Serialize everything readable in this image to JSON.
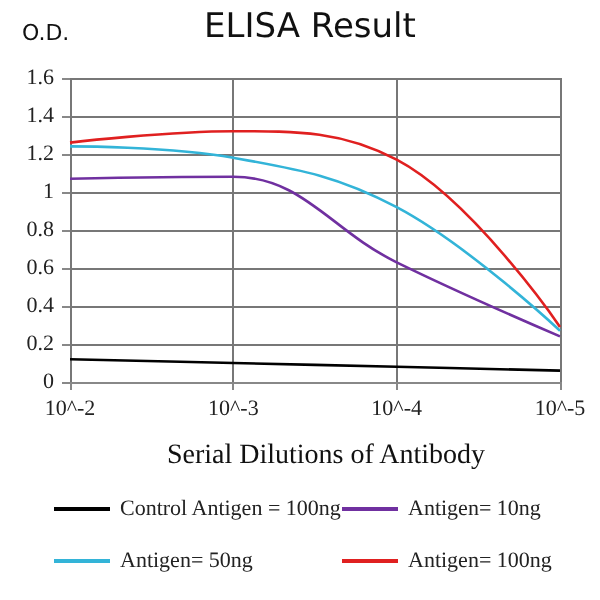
{
  "chart_data": {
    "type": "line",
    "title": "ELISA Result",
    "ylabel": "O.D.",
    "xlabel": "Serial Dilutions of Antibody",
    "categories": [
      "10^-2",
      "10^-3",
      "10^-4",
      "10^-5"
    ],
    "series": [
      {
        "name": "Control Antigen = 100ng",
        "color": "#000000",
        "values": [
          0.12,
          0.1,
          0.08,
          0.06
        ]
      },
      {
        "name": "Antigen= 10ng",
        "color": "#7030a0",
        "values": [
          1.07,
          1.08,
          0.63,
          0.24
        ]
      },
      {
        "name": "Antigen= 50ng",
        "color": "#33b4d8",
        "values": [
          1.24,
          1.18,
          0.92,
          0.27
        ]
      },
      {
        "name": "Antigen= 100ng",
        "color": "#e02020",
        "values": [
          1.26,
          1.32,
          1.17,
          0.29
        ]
      }
    ],
    "ylim": [
      0,
      1.6
    ],
    "yticks": [
      0,
      0.2,
      0.4,
      0.6,
      0.8,
      1,
      1.2,
      1.4,
      1.6
    ],
    "grid": true,
    "legend": "bottom",
    "marker": "none",
    "line_style": "solid"
  }
}
